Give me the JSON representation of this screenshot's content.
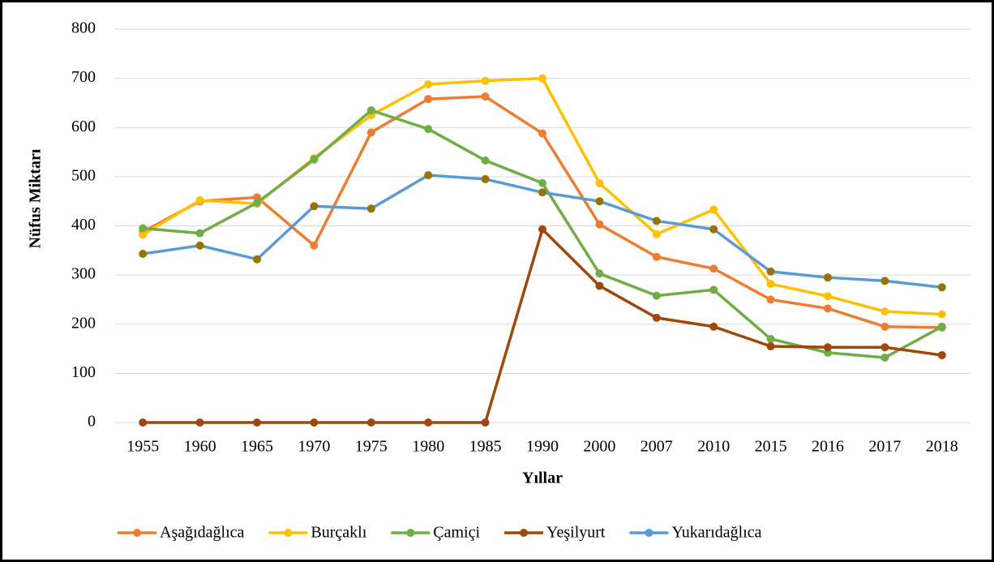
{
  "chart_data": {
    "type": "line",
    "x_label": "Yıllar",
    "y_label": "Nüfus Miktarı",
    "categories": [
      "1955",
      "1960",
      "1965",
      "1970",
      "1975",
      "1980",
      "1985",
      "1990",
      "2000",
      "2007",
      "2010",
      "2015",
      "2016",
      "2017",
      "2018"
    ],
    "ylim": [
      0,
      800
    ],
    "yticks": [
      0,
      100,
      200,
      300,
      400,
      500,
      600,
      700,
      800
    ],
    "grid": true,
    "legend": "bottom",
    "series": [
      {
        "name": "Aşağıdağlıca",
        "color": "#ed7d31",
        "values": [
          388,
          450,
          458,
          360,
          590,
          658,
          663,
          588,
          403,
          337,
          313,
          250,
          232,
          195,
          193
        ]
      },
      {
        "name": "Burçaklı",
        "color": "#ffc000",
        "values": [
          382,
          452,
          445,
          538,
          625,
          688,
          695,
          700,
          487,
          383,
          433,
          282,
          257,
          226,
          220
        ]
      },
      {
        "name": "Çamiçi",
        "color": "#70ad47",
        "values": [
          395,
          385,
          447,
          535,
          635,
          597,
          533,
          487,
          303,
          258,
          270,
          170,
          142,
          132,
          195
        ]
      },
      {
        "name": "Yeşilyurt",
        "color": "#9e480e",
        "values": [
          0,
          0,
          0,
          0,
          0,
          0,
          0,
          393,
          278,
          213,
          195,
          155,
          153,
          153,
          137
        ]
      },
      {
        "name": "Yukarıdağlıca",
        "color": "#5b9bd5",
        "marker_color": "#997300",
        "values": [
          343,
          360,
          332,
          440,
          435,
          503,
          495,
          468,
          450,
          410,
          393,
          307,
          295,
          288,
          275
        ]
      }
    ]
  }
}
